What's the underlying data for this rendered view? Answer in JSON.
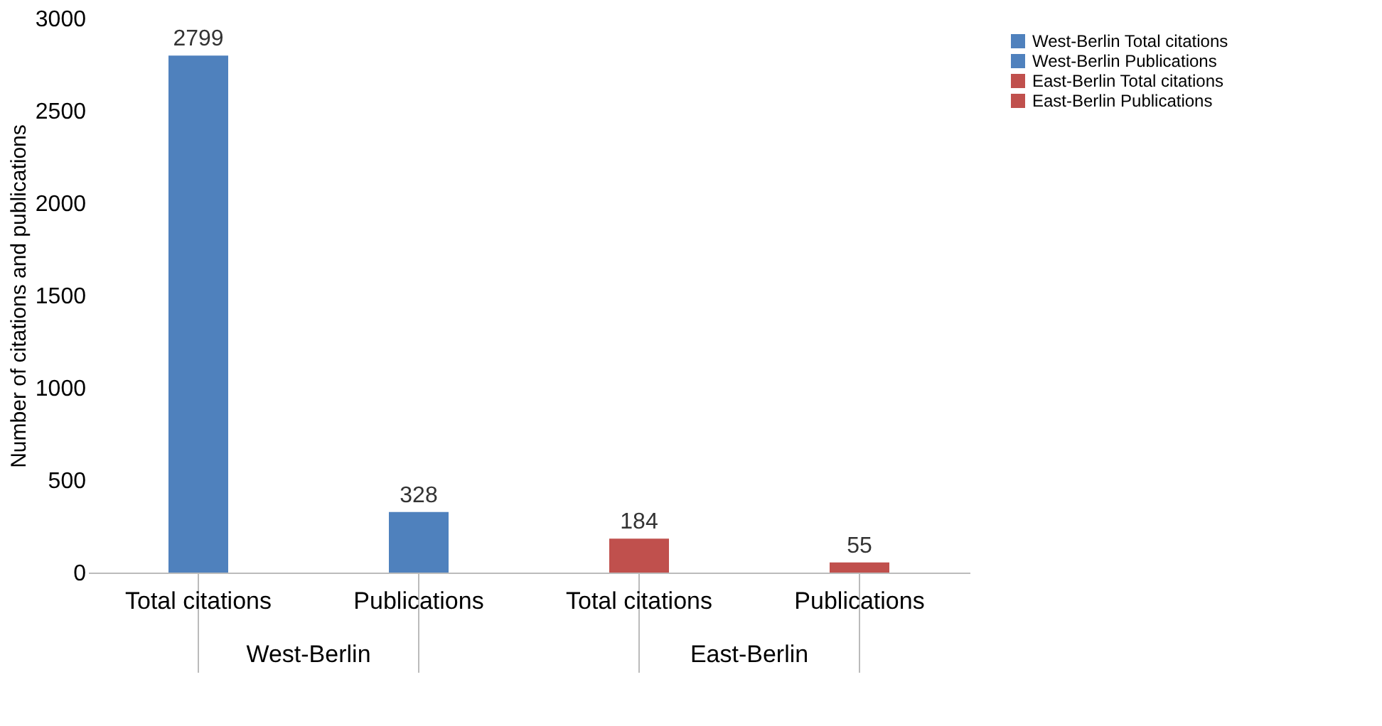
{
  "chart_data": {
    "type": "bar",
    "ylabel": "Number of  citations and publications",
    "categories": [
      "Total citations",
      "Publications",
      "Total citations",
      "Publications"
    ],
    "series": [
      {
        "name": "West-Berlin Total citations",
        "color": "#4f81bd",
        "values": [
          2799,
          null,
          null,
          null
        ]
      },
      {
        "name": "West-Berlin Publications",
        "color": "#4f81bd",
        "values": [
          null,
          328,
          null,
          null
        ]
      },
      {
        "name": "East-Berlin Total citations",
        "color": "#c0504d",
        "values": [
          null,
          null,
          184,
          null
        ]
      },
      {
        "name": "East-Berlin Publications",
        "color": "#c0504d",
        "values": [
          null,
          null,
          null,
          55
        ]
      }
    ],
    "ylim": [
      0,
      3000
    ],
    "yticks": [
      0,
      500,
      1000,
      1500,
      2000,
      2500,
      3000
    ],
    "grid": false,
    "legend": "right",
    "data_labels": true,
    "annotations": [
      "West-Berlin",
      "East-Berlin"
    ]
  }
}
